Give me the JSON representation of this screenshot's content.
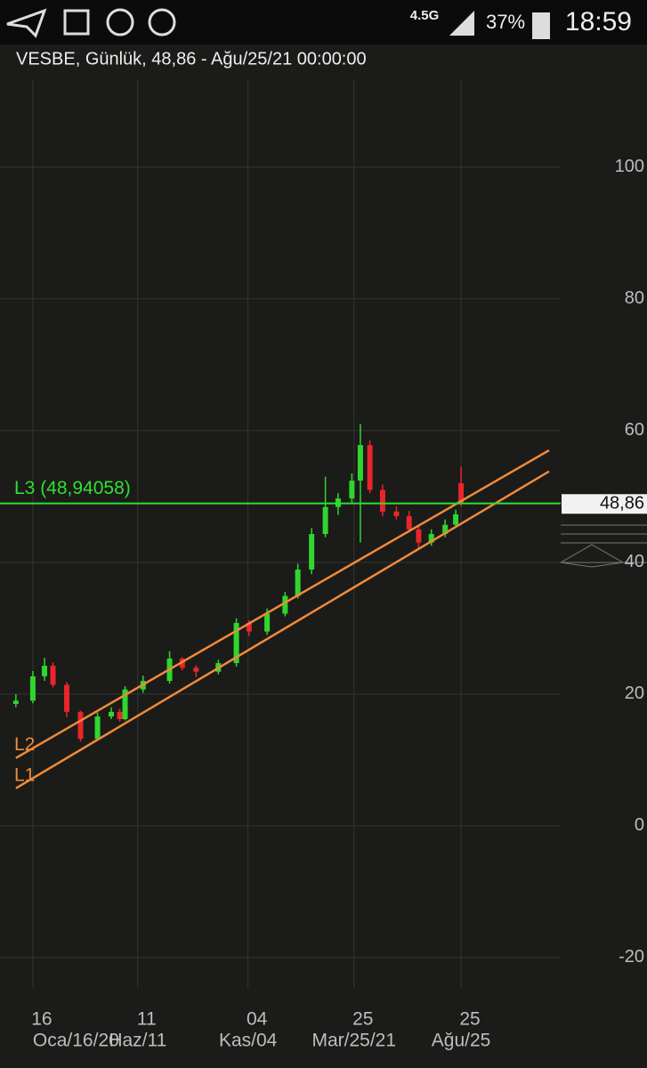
{
  "status_bar": {
    "network": "4.5G",
    "battery": "37%",
    "time": "18:59"
  },
  "chart_data": {
    "type": "candlestick",
    "title": "VESBE,  Günlük, 48,86 - Ağu/25/21 00:00:00",
    "x": [
      -16,
      0,
      11,
      19,
      32,
      45,
      61,
      74,
      82,
      87,
      104,
      129,
      141,
      154,
      175,
      192,
      204,
      221,
      238,
      250,
      263,
      276,
      288,
      301,
      309,
      318,
      330,
      343,
      355,
      364,
      376,
      389,
      399,
      404
    ],
    "open": [
      18.5,
      19,
      22.7,
      24.3,
      21.4,
      17.3,
      13.2,
      16.6,
      17.3,
      16.2,
      20.7,
      22,
      25.4,
      24,
      23.4,
      24.7,
      30.8,
      29.5,
      32.2,
      34.9,
      38.9,
      44.3,
      48.4,
      49.7,
      52.4,
      57.8,
      51,
      47.7,
      47,
      45,
      43,
      44.3,
      45.7,
      52
    ],
    "high": [
      20,
      23.5,
      25.5,
      24.8,
      21.8,
      17.5,
      17.2,
      18,
      17.8,
      21.2,
      22.8,
      26.5,
      25.6,
      24.4,
      25.2,
      31.5,
      31.2,
      33,
      35.5,
      39.8,
      45.2,
      53,
      50.5,
      53.5,
      61,
      58.5,
      51.8,
      48.5,
      47.8,
      45.5,
      45,
      46.5,
      48,
      54.5
    ],
    "low": [
      18,
      18.6,
      22,
      21,
      16.5,
      12.8,
      13,
      16.2,
      15.8,
      16,
      20.2,
      21.6,
      23.6,
      22.6,
      23,
      24.2,
      28.8,
      29,
      31.8,
      34.5,
      38.2,
      43.8,
      47.2,
      49,
      43,
      50.5,
      47,
      46.5,
      44.5,
      42,
      42.5,
      43.8,
      45.2,
      48.5
    ],
    "close": [
      19,
      22.7,
      24.3,
      21.4,
      17.3,
      13.2,
      16.6,
      17.3,
      16.2,
      20.7,
      22,
      25.4,
      24,
      23.4,
      24.7,
      30.8,
      29.5,
      32.2,
      34.9,
      38.9,
      44.3,
      48.4,
      49.7,
      52.4,
      57.8,
      51,
      47.7,
      47,
      45,
      43,
      44.3,
      45.7,
      47.3,
      48.86
    ],
    "up_color": "#2fd62f",
    "down_color": "#e8262b",
    "trend_lines": [
      {
        "name": "L2",
        "color": "#f08a3a",
        "x": [
          -16,
          487
        ],
        "values": [
          10.3,
          57
        ]
      },
      {
        "name": "L1",
        "color": "#f08a3a",
        "x": [
          -16,
          487
        ],
        "values": [
          5.7,
          53.8
        ]
      }
    ],
    "level_line": {
      "name": "L3 (48,94058)",
      "value": 48.94058,
      "color": "#2fe02f"
    },
    "last_price": {
      "value": 48.86,
      "label": "48,86"
    },
    "xlim": [
      -31,
      498
    ],
    "xticks": [
      {
        "value": 0,
        "label": "16"
      },
      {
        "value": 99,
        "label": "11"
      },
      {
        "value": 203,
        "label": "04"
      },
      {
        "value": 303,
        "label": "25"
      },
      {
        "value": 404,
        "label": "25"
      }
    ],
    "xtick_sublabels": [
      "Oca/16/20",
      "Haz/11",
      "Kas/04",
      "Mar/25/21",
      "Ağu/25"
    ],
    "ylim": [
      -24.6,
      113.2
    ],
    "yticks": [
      -20,
      0,
      20,
      40,
      60,
      80,
      100
    ],
    "grid": true
  }
}
